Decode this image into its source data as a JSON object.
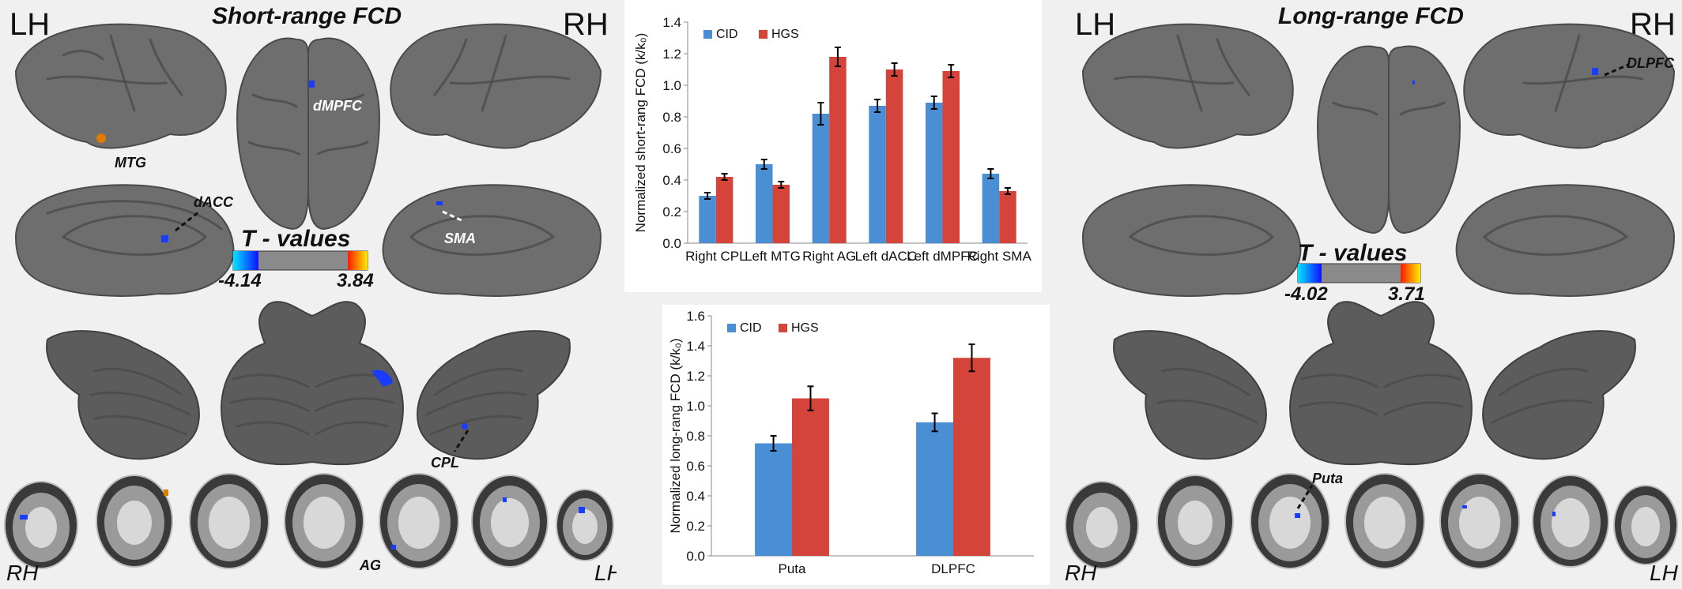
{
  "left_panel": {
    "title": "Short-range FCD",
    "lh_label": "LH",
    "rh_label": "RH",
    "tvalues": {
      "title": "T - values",
      "min": "-4.14",
      "max": "3.84"
    },
    "rois": {
      "mtg": "MTG",
      "dmpfc": "dMPFC",
      "dacc": "dACC",
      "sma": "SMA",
      "cpl": "CPL",
      "ag": "AG"
    },
    "slice_rh": "RH",
    "slice_lh": "LH"
  },
  "right_panel": {
    "title": "Long-range FCD",
    "lh_label": "LH",
    "rh_label": "RH",
    "tvalues": {
      "title": "T - values",
      "min": "-4.02",
      "max": "3.71"
    },
    "rois": {
      "dlpfc": "DLPFC",
      "puta": "Puta"
    },
    "slice_rh": "RH",
    "slice_lh": "LH"
  },
  "colors": {
    "cid": "#4a8fd4",
    "hgs": "#d5443b",
    "activation_blue": "#1a3cff",
    "activation_orange": "#e07a00"
  },
  "chart_data": [
    {
      "type": "bar",
      "title": "",
      "xlabel": "",
      "ylabel": "Normalized short-rang FCD (k/k₀)",
      "ylim": [
        0,
        1.4
      ],
      "yticks": [
        "0.0",
        "0.2",
        "0.4",
        "0.6",
        "0.8",
        "1.0",
        "1.2",
        "1.4"
      ],
      "categories": [
        "Right CPL",
        "Left MTG",
        "Right AG",
        "Left dACC",
        "Left dMPFC",
        "Right SMA"
      ],
      "series": [
        {
          "name": "CID",
          "values": [
            0.3,
            0.5,
            0.82,
            0.87,
            0.89,
            0.44
          ],
          "errors": [
            0.02,
            0.03,
            0.07,
            0.04,
            0.04,
            0.03
          ]
        },
        {
          "name": "HGS",
          "values": [
            0.42,
            0.37,
            1.18,
            1.1,
            1.09,
            0.33
          ],
          "errors": [
            0.02,
            0.02,
            0.06,
            0.04,
            0.04,
            0.02
          ]
        }
      ],
      "legend": "top-left",
      "grid": false
    },
    {
      "type": "bar",
      "title": "",
      "xlabel": "",
      "ylabel": "Normalized long-rang FCD (k/k₀)",
      "ylim": [
        0,
        1.6
      ],
      "yticks": [
        "0.0",
        "0.2",
        "0.4",
        "0.6",
        "0.8",
        "1.0",
        "1.2",
        "1.4",
        "1.6"
      ],
      "categories": [
        "Puta",
        "DLPFC"
      ],
      "series": [
        {
          "name": "CID",
          "values": [
            0.75,
            0.89
          ],
          "errors": [
            0.05,
            0.06
          ]
        },
        {
          "name": "HGS",
          "values": [
            1.05,
            1.32
          ],
          "errors": [
            0.08,
            0.09
          ]
        }
      ],
      "legend": "top-left",
      "grid": false
    }
  ]
}
